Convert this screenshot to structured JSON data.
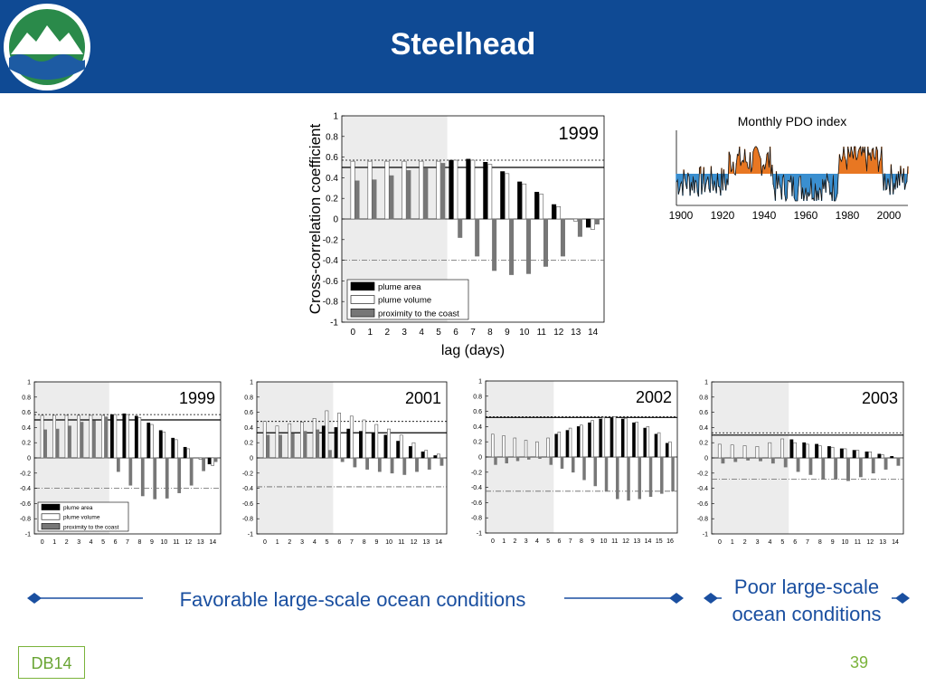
{
  "header": {
    "title": "Steelhead"
  },
  "footer": {
    "tag": "DB14",
    "page": "39"
  },
  "captions": {
    "favorable": "Favorable large-scale ocean conditions",
    "poor": "Poor large-scale ocean conditions"
  },
  "colors": {
    "header_bg": "#0f4a94",
    "caption": "#1a4fa0",
    "footer": "#7ab33a",
    "arrow": "#1a4fa0"
  },
  "pdo": {
    "title": "Monthly PDO index",
    "xticks": [
      "1900",
      "1920",
      "1940",
      "1960",
      "1980",
      "2000"
    ]
  },
  "chart_data": [
    {
      "type": "bar",
      "label": "1999",
      "ylabel": "Cross-correlation coefficient",
      "xlabel": "lag (days)",
      "ylim": [
        -1,
        1
      ],
      "yticks": [
        "1",
        "0.8",
        "0.6",
        "0.4",
        "0.2",
        "0",
        "-0.2",
        "-0.4",
        "-0.6",
        "-0.8",
        "-1"
      ],
      "categories": [
        "0",
        "1",
        "2",
        "3",
        "4",
        "5",
        "6",
        "7",
        "8",
        "9",
        "10",
        "11",
        "12",
        "13",
        "14"
      ],
      "shaded_lags": [
        0,
        5
      ],
      "legend": "bottom-left",
      "series": [
        {
          "name": "plume area",
          "values": [
            0.0,
            0.0,
            0.0,
            0.0,
            0.0,
            0.0,
            0.57,
            0.58,
            0.55,
            0.46,
            0.36,
            0.26,
            0.14,
            0.0,
            -0.08
          ]
        },
        {
          "name": "plume volume",
          "values": [
            0.56,
            0.56,
            0.56,
            0.56,
            0.56,
            0.56,
            0.57,
            0.57,
            0.53,
            0.44,
            0.34,
            0.24,
            0.12,
            -0.02,
            -0.1
          ]
        },
        {
          "name": "proximity to the coast",
          "values": [
            0.37,
            0.38,
            0.42,
            0.47,
            0.49,
            0.54,
            -0.18,
            -0.36,
            -0.5,
            -0.54,
            -0.53,
            -0.46,
            -0.36,
            -0.17,
            -0.05
          ]
        }
      ],
      "ref_lines": [
        0.5,
        0.57,
        -0.4
      ]
    },
    {
      "type": "bar",
      "label": "1999",
      "ylim": [
        -1,
        1
      ],
      "yticks": [
        "1",
        "0.8",
        "0.6",
        "0.4",
        "0.2",
        "0",
        "-0.2",
        "-0.4",
        "-0.6",
        "-0.8",
        "-1"
      ],
      "categories": [
        "0",
        "1",
        "2",
        "3",
        "4",
        "5",
        "6",
        "7",
        "8",
        "9",
        "10",
        "11",
        "12",
        "13",
        "14"
      ],
      "shaded_lags": [
        0,
        5
      ],
      "legend": "bottom-left",
      "series": [
        {
          "name": "plume area",
          "values": [
            0.0,
            0.0,
            0.0,
            0.0,
            0.0,
            0.0,
            0.57,
            0.58,
            0.55,
            0.46,
            0.36,
            0.26,
            0.14,
            0.0,
            -0.08
          ]
        },
        {
          "name": "plume volume",
          "values": [
            0.56,
            0.56,
            0.56,
            0.56,
            0.56,
            0.56,
            0.57,
            0.57,
            0.53,
            0.44,
            0.34,
            0.24,
            0.12,
            -0.02,
            -0.1
          ]
        },
        {
          "name": "proximity to the coast",
          "values": [
            0.37,
            0.38,
            0.42,
            0.47,
            0.49,
            0.54,
            -0.18,
            -0.36,
            -0.5,
            -0.54,
            -0.53,
            -0.46,
            -0.36,
            -0.17,
            -0.05
          ]
        }
      ],
      "ref_lines": [
        0.5,
        0.57,
        -0.4
      ]
    },
    {
      "type": "bar",
      "label": "2001",
      "ylim": [
        -1,
        1
      ],
      "yticks": [
        "1",
        "0.8",
        "0.6",
        "0.4",
        "0.2",
        "0",
        "-0.2",
        "-0.4",
        "-0.6",
        "-0.8",
        "-1"
      ],
      "categories": [
        "0",
        "1",
        "2",
        "3",
        "4",
        "5",
        "6",
        "7",
        "8",
        "9",
        "10",
        "11",
        "12",
        "13",
        "14"
      ],
      "shaded_lags": [
        0,
        5
      ],
      "series": [
        {
          "name": "plume area",
          "values": [
            0.0,
            0.0,
            0.0,
            0.0,
            0.0,
            0.42,
            0.4,
            0.38,
            0.35,
            0.33,
            0.3,
            0.22,
            0.15,
            0.08,
            0.03
          ]
        },
        {
          "name": "plume volume",
          "values": [
            0.48,
            0.42,
            0.45,
            0.47,
            0.52,
            0.62,
            0.59,
            0.55,
            0.5,
            0.44,
            0.38,
            0.3,
            0.2,
            0.1,
            0.05
          ]
        },
        {
          "name": "proximity to the coast",
          "values": [
            0.3,
            0.3,
            0.32,
            0.35,
            0.37,
            0.1,
            -0.05,
            -0.12,
            -0.15,
            -0.18,
            -0.2,
            -0.22,
            -0.18,
            -0.15,
            -0.1
          ]
        }
      ],
      "ref_lines": [
        0.33,
        0.48,
        -0.38
      ]
    },
    {
      "type": "bar",
      "label": "2002",
      "ylim": [
        -1,
        1
      ],
      "yticks": [
        "1",
        "0.8",
        "0.6",
        "0.4",
        "0.2",
        "0",
        "-0.2",
        "-0.4",
        "-0.6",
        "-0.8",
        "-1"
      ],
      "categories": [
        "0",
        "1",
        "2",
        "3",
        "4",
        "5",
        "6",
        "7",
        "8",
        "9",
        "10",
        "11",
        "12",
        "13",
        "14",
        "15",
        "16"
      ],
      "shaded_lags": [
        0,
        5
      ],
      "series": [
        {
          "name": "plume area",
          "values": [
            0.0,
            0.0,
            0.0,
            0.0,
            0.0,
            0.0,
            0.3,
            0.35,
            0.4,
            0.45,
            0.5,
            0.51,
            0.5,
            0.45,
            0.38,
            0.3,
            0.18
          ]
        },
        {
          "name": "plume volume",
          "values": [
            0.3,
            0.28,
            0.25,
            0.22,
            0.2,
            0.25,
            0.33,
            0.38,
            0.42,
            0.48,
            0.52,
            0.53,
            0.51,
            0.46,
            0.4,
            0.32,
            0.2
          ]
        },
        {
          "name": "proximity to the coast",
          "values": [
            -0.1,
            -0.08,
            -0.05,
            -0.03,
            -0.02,
            -0.1,
            -0.15,
            -0.2,
            -0.3,
            -0.38,
            -0.45,
            -0.55,
            -0.57,
            -0.55,
            -0.52,
            -0.48,
            -0.45
          ]
        }
      ],
      "ref_lines": [
        0.52,
        0.53,
        -0.45
      ]
    },
    {
      "type": "bar",
      "label": "2003",
      "ylim": [
        -1,
        1
      ],
      "yticks": [
        "1",
        "0.8",
        "0.6",
        "0.4",
        "0.2",
        "0",
        "-0.2",
        "-0.4",
        "-0.6",
        "-0.8",
        "-1"
      ],
      "categories": [
        "0",
        "1",
        "2",
        "3",
        "4",
        "5",
        "6",
        "7",
        "8",
        "9",
        "10",
        "11",
        "12",
        "13",
        "14"
      ],
      "shaded_lags": [
        0,
        5
      ],
      "series": [
        {
          "name": "plume area",
          "values": [
            0.0,
            0.0,
            0.0,
            0.0,
            0.0,
            0.0,
            0.24,
            0.2,
            0.18,
            0.15,
            0.12,
            0.1,
            0.08,
            0.05,
            0.02
          ]
        },
        {
          "name": "plume volume",
          "values": [
            0.18,
            0.17,
            0.16,
            0.15,
            0.2,
            0.25,
            0.2,
            0.18,
            0.16,
            0.14,
            0.12,
            0.1,
            0.08,
            0.04,
            0.0
          ]
        },
        {
          "name": "proximity to the coast",
          "values": [
            -0.07,
            -0.05,
            -0.03,
            -0.04,
            -0.07,
            -0.12,
            -0.18,
            -0.22,
            -0.28,
            -0.28,
            -0.3,
            -0.25,
            -0.2,
            -0.15,
            -0.1
          ]
        }
      ],
      "ref_lines": [
        0.3,
        0.33,
        -0.28
      ]
    }
  ]
}
